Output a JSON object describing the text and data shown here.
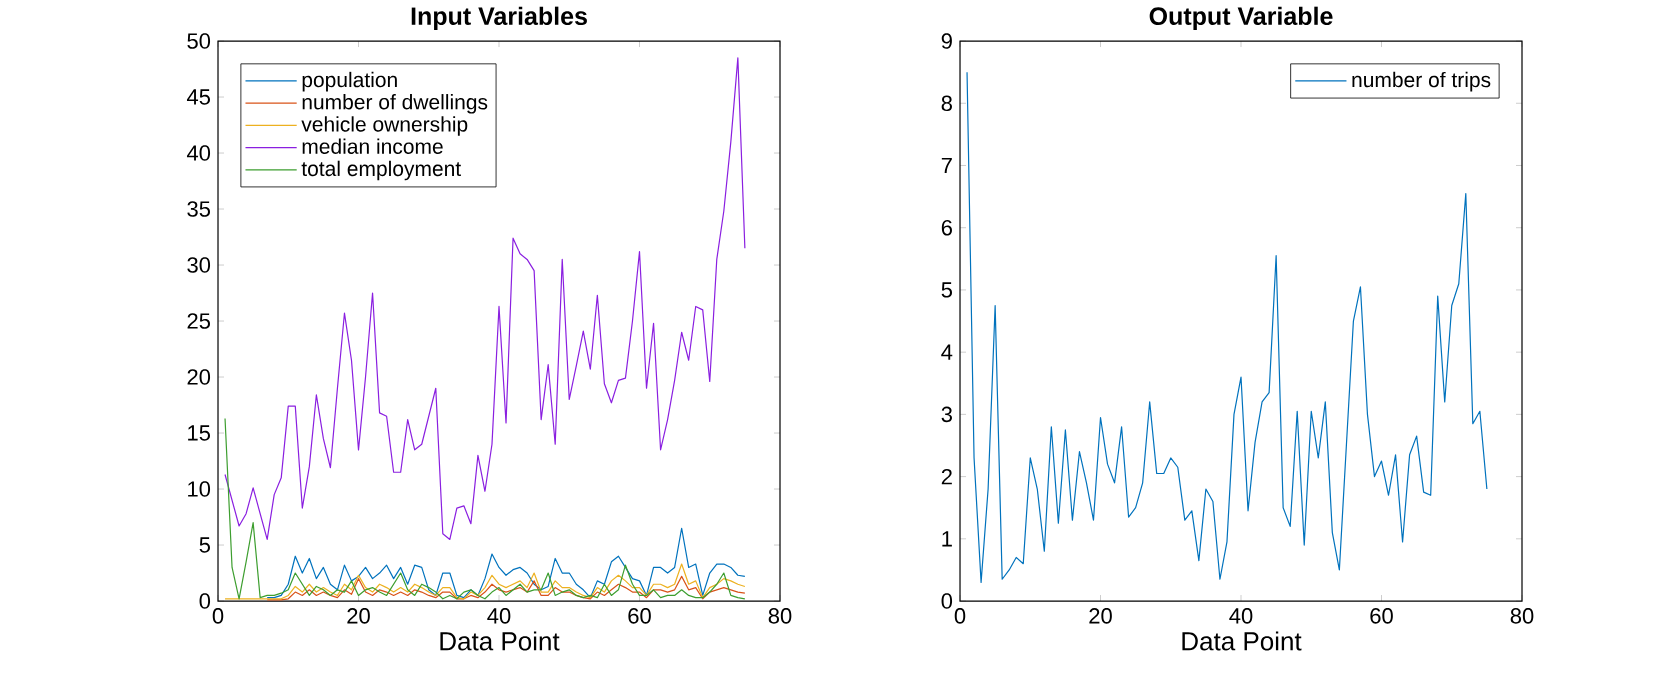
{
  "chart_data": [
    {
      "type": "line",
      "title": "Input Variables",
      "xlabel": "Data Point",
      "x": [
        1,
        2,
        3,
        4,
        5,
        6,
        7,
        8,
        9,
        10,
        11,
        12,
        13,
        14,
        15,
        16,
        17,
        18,
        19,
        20,
        21,
        22,
        23,
        24,
        25,
        26,
        27,
        28,
        29,
        30,
        31,
        32,
        33,
        34,
        35,
        36,
        37,
        38,
        39,
        40,
        41,
        42,
        43,
        44,
        45,
        46,
        47,
        48,
        49,
        50,
        51,
        52,
        53,
        54,
        55,
        56,
        57,
        58,
        59,
        60,
        61,
        62,
        63,
        64,
        65,
        66,
        67,
        68,
        69,
        70,
        71,
        72,
        73,
        74,
        75
      ],
      "xlim": [
        0,
        80
      ],
      "xticks": [
        0,
        20,
        40,
        60,
        80
      ],
      "ylim": [
        0,
        50
      ],
      "yticks": [
        0,
        5,
        10,
        15,
        20,
        25,
        30,
        35,
        40,
        45,
        50
      ],
      "legend": "top left",
      "grid": false,
      "marker": "none",
      "line_style": "solid",
      "series": [
        {
          "name": "population",
          "color": "#0072bd",
          "values": [
            null,
            null,
            null,
            null,
            null,
            null,
            0.3,
            0.3,
            0.5,
            1.5,
            4,
            2.5,
            3.8,
            2,
            3,
            1.5,
            1,
            3.2,
            1.8,
            2.2,
            3,
            2,
            2.5,
            3.2,
            2,
            3,
            1.5,
            3.2,
            3,
            1,
            0.5,
            2.5,
            2.5,
            0.5,
            0.3,
            1,
            0.5,
            2,
            4.2,
            3,
            2.3,
            2.8,
            3,
            2.5,
            1.5,
            1,
            1.3,
            3.8,
            2.5,
            2.5,
            1.5,
            1,
            0.3,
            1.8,
            1.5,
            3.5,
            4,
            3,
            2,
            1.8,
            0.5,
            3,
            3,
            2.5,
            3,
            6.5,
            3,
            3.3,
            0.5,
            2.5,
            3.3,
            3.3,
            3,
            2.3,
            2.2
          ]
        },
        {
          "name": "number of dwellings",
          "color": "#d95319",
          "values": [
            null,
            null,
            null,
            null,
            null,
            null,
            0.1,
            0.1,
            0.1,
            0.2,
            0.8,
            0.5,
            1,
            0.5,
            0.8,
            0.5,
            0.3,
            1,
            0.6,
            2,
            0.8,
            0.5,
            1,
            0.8,
            0.5,
            0.8,
            0.5,
            1,
            0.8,
            0.5,
            0.3,
            0.8,
            0.8,
            0.2,
            0.2,
            0.5,
            0.3,
            0.8,
            1.5,
            1,
            0.8,
            1,
            1.2,
            0.8,
            1.8,
            0.5,
            0.5,
            1.2,
            0.8,
            0.8,
            0.5,
            0.3,
            0.2,
            0.8,
            0.5,
            1,
            1.5,
            1.2,
            0.8,
            0.8,
            0.3,
            1,
            1,
            0.8,
            1,
            2.2,
            1,
            1.2,
            0.2,
            0.8,
            1,
            1.2,
            1,
            0.8,
            0.7
          ]
        },
        {
          "name": "vehicle ownership",
          "color": "#edb120",
          "values": [
            0.2,
            0.2,
            0.2,
            0.2,
            0.2,
            0.2,
            0.2,
            0.2,
            0.2,
            0.5,
            1.3,
            0.8,
            1.5,
            0.8,
            1.2,
            0.8,
            0.5,
            1.5,
            1,
            2.3,
            1.2,
            0.8,
            1.5,
            1.2,
            0.8,
            1.2,
            0.8,
            1.5,
            1.2,
            0.8,
            0.5,
            1.2,
            1.2,
            0.3,
            0.2,
            0.8,
            0.5,
            1.2,
            2.3,
            1.5,
            1.2,
            1.5,
            1.8,
            1.2,
            2.5,
            0.8,
            0.8,
            1.8,
            1.2,
            1.2,
            0.8,
            0.5,
            0.3,
            1.2,
            0.8,
            1.8,
            2.3,
            1.8,
            1.2,
            1.2,
            0.5,
            1.5,
            1.5,
            1.2,
            1.5,
            3.3,
            1.5,
            1.8,
            0.3,
            1.2,
            1.5,
            2,
            1.8,
            1.5,
            1.3
          ]
        },
        {
          "name": "median income",
          "color": "#8a1fe0",
          "values": [
            11.3,
            9.0,
            6.7,
            7.8,
            10.1,
            7.8,
            5.5,
            9.5,
            11,
            17.4,
            17.4,
            8.3,
            12,
            18.4,
            14.5,
            11.9,
            19,
            25.7,
            21.5,
            13.5,
            20,
            27.5,
            16.8,
            16.5,
            11.5,
            11.5,
            16.2,
            13.5,
            14,
            16.5,
            19,
            6,
            5.5,
            8.3,
            8.5,
            6.9,
            13,
            9.8,
            14,
            26.3,
            15.9,
            32.4,
            31,
            30.5,
            29.5,
            16.2,
            21.1,
            14,
            30.5,
            18,
            21,
            24.1,
            20.7,
            27.3,
            19.4,
            17.7,
            19.7,
            19.9,
            25,
            31.2,
            19,
            24.8,
            13.5,
            16.2,
            19.7,
            24,
            21.5,
            26.3,
            26,
            19.6,
            30.5,
            34.8,
            41,
            48.5,
            31.5
          ]
        },
        {
          "name": "total employment",
          "color": "#3d9e2f",
          "values": [
            16.3,
            3,
            0.2,
            3.5,
            7,
            0.3,
            0.5,
            0.5,
            0.7,
            1,
            2.5,
            1.5,
            0.5,
            1.3,
            1,
            0.5,
            1,
            0.8,
            1.8,
            0.5,
            1,
            1.2,
            0.8,
            0.5,
            1.5,
            2.5,
            1,
            0.5,
            1.5,
            1.2,
            0.8,
            0.2,
            0.5,
            0.2,
            0.8,
            1,
            0.5,
            0.2,
            0.8,
            1.2,
            0.5,
            1,
            1.5,
            0.8,
            1,
            1,
            2.5,
            0.5,
            0.8,
            1,
            0.5,
            0.3,
            0.5,
            0.3,
            1.5,
            0.5,
            1,
            3.2,
            1.5,
            0.5,
            0.5,
            1,
            0.3,
            0.5,
            0.5,
            1,
            0.5,
            0.3,
            0.3,
            0.8,
            1.5,
            2.5,
            0.5,
            0.3,
            0.2
          ]
        }
      ]
    },
    {
      "type": "line",
      "title": "Output Variable",
      "xlabel": "Data Point",
      "x": [
        1,
        2,
        3,
        4,
        5,
        6,
        7,
        8,
        9,
        10,
        11,
        12,
        13,
        14,
        15,
        16,
        17,
        18,
        19,
        20,
        21,
        22,
        23,
        24,
        25,
        26,
        27,
        28,
        29,
        30,
        31,
        32,
        33,
        34,
        35,
        36,
        37,
        38,
        39,
        40,
        41,
        42,
        43,
        44,
        45,
        46,
        47,
        48,
        49,
        50,
        51,
        52,
        53,
        54,
        55,
        56,
        57,
        58,
        59,
        60,
        61,
        62,
        63,
        64,
        65,
        66,
        67,
        68,
        69,
        70,
        71,
        72,
        73,
        74,
        75
      ],
      "xlim": [
        0,
        80
      ],
      "xticks": [
        0,
        20,
        40,
        60,
        80
      ],
      "ylim": [
        0,
        9
      ],
      "yticks": [
        0,
        1,
        2,
        3,
        4,
        5,
        6,
        7,
        8,
        9
      ],
      "legend": "top right",
      "grid": false,
      "marker": "none",
      "line_style": "solid",
      "series": [
        {
          "name": "number of trips",
          "color": "#0072bd",
          "values": [
            8.5,
            2.3,
            0.3,
            1.8,
            4.75,
            0.35,
            0.5,
            0.7,
            0.6,
            2.3,
            1.8,
            0.8,
            2.8,
            1.25,
            2.75,
            1.3,
            2.4,
            1.9,
            1.3,
            2.95,
            2.2,
            1.9,
            2.8,
            1.35,
            1.5,
            1.9,
            3.2,
            2.05,
            2.05,
            2.3,
            2.15,
            1.3,
            1.45,
            0.65,
            1.8,
            1.6,
            0.35,
            0.95,
            3.0,
            3.6,
            1.45,
            2.55,
            3.2,
            3.35,
            5.55,
            1.5,
            1.2,
            3.05,
            0.9,
            3.05,
            2.3,
            3.2,
            1.1,
            0.5,
            2.5,
            4.5,
            5.05,
            3.0,
            2.0,
            2.25,
            1.7,
            2.35,
            0.95,
            2.35,
            2.65,
            1.75,
            1.7,
            4.9,
            3.2,
            4.75,
            5.1,
            6.55,
            2.85,
            3.05,
            1.8
          ]
        }
      ]
    }
  ]
}
